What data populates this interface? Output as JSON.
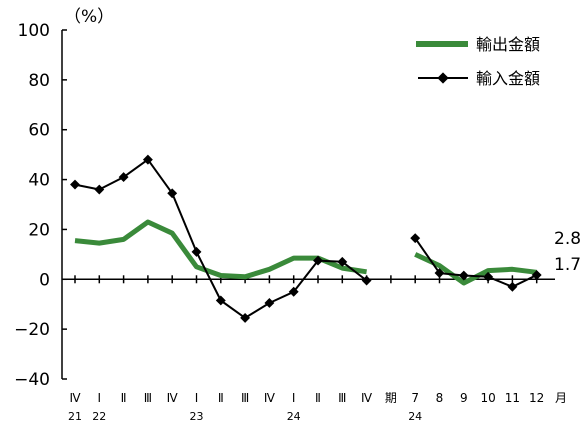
{
  "chart_data": {
    "type": "line",
    "unit_label": "（%）",
    "ylim": [
      -40,
      100
    ],
    "yticks": [
      -40,
      -20,
      0,
      20,
      40,
      60,
      80,
      100
    ],
    "ytick_labels": [
      "−40",
      "−20",
      "0",
      "20",
      "40",
      "60",
      "80",
      "100"
    ],
    "x_labels": [
      "Ⅳ",
      "Ⅰ",
      "Ⅱ",
      "Ⅲ",
      "Ⅳ",
      "Ⅰ",
      "Ⅱ",
      "Ⅲ",
      "Ⅳ",
      "Ⅰ",
      "Ⅱ",
      "Ⅲ",
      "Ⅳ",
      "期",
      "7",
      "8",
      "9",
      "10",
      "11",
      "12",
      "月"
    ],
    "x_sublabels": [
      {
        "at": 0,
        "text": "21"
      },
      {
        "at": 1,
        "text": "22"
      },
      {
        "at": 5,
        "text": "23"
      },
      {
        "at": 9,
        "text": "24"
      },
      {
        "at": 14,
        "text": "24"
      }
    ],
    "series": [
      {
        "name": "輸出金額",
        "color": "#3a8a3a",
        "segments": [
          [
            [
              0,
              15.5
            ],
            [
              1,
              14.5
            ],
            [
              2,
              16
            ],
            [
              3,
              23
            ],
            [
              4,
              18.5
            ],
            [
              5,
              5
            ],
            [
              6,
              1.5
            ],
            [
              7,
              1
            ],
            [
              8,
              4
            ],
            [
              9,
              8.5
            ],
            [
              10,
              8.5
            ],
            [
              11,
              4.5
            ],
            [
              12,
              3
            ]
          ],
          [
            [
              14,
              10
            ],
            [
              15,
              5.5
            ],
            [
              16,
              -1.5
            ],
            [
              17,
              3.5
            ],
            [
              18,
              4
            ],
            [
              19,
              2.8
            ]
          ]
        ]
      },
      {
        "name": "輸入金額",
        "color": "#000000",
        "segments": [
          [
            [
              0,
              38
            ],
            [
              1,
              36
            ],
            [
              2,
              41
            ],
            [
              3,
              48
            ],
            [
              4,
              34.5
            ],
            [
              5,
              11
            ],
            [
              6,
              -8.5
            ],
            [
              7,
              -15.5
            ],
            [
              8,
              -9.5
            ],
            [
              9,
              -5
            ],
            [
              10,
              7.5
            ],
            [
              11,
              7
            ],
            [
              12,
              -0.5
            ]
          ],
          [
            [
              14,
              16.5
            ],
            [
              15,
              2.5
            ],
            [
              16,
              1.5
            ],
            [
              17,
              1
            ],
            [
              18,
              -3
            ],
            [
              19,
              1.7
            ]
          ]
        ]
      }
    ],
    "end_labels": [
      "2.8",
      "1.7"
    ]
  }
}
